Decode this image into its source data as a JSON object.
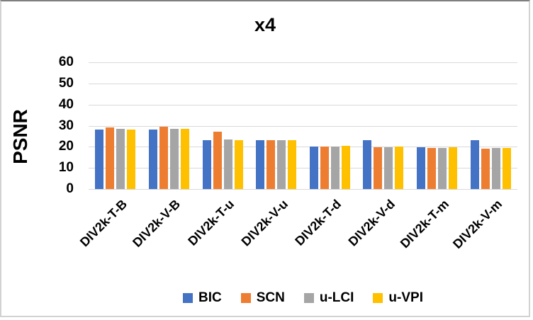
{
  "chart_data": {
    "type": "bar",
    "title": "x4",
    "ylabel": "PSNR",
    "xlabel": "",
    "ylim": [
      0,
      60
    ],
    "yticks": [
      0,
      10,
      20,
      30,
      40,
      50,
      60
    ],
    "grid": true,
    "legend_position": "bottom",
    "categories": [
      "DIV2k-T-B",
      "DIV2k-V-B",
      "DIV2k-T-u",
      "DIV2k-V-u",
      "DIV2k-T-d",
      "DIV2k-V-d",
      "DIV2k-T-m",
      "DIV2k-V-m"
    ],
    "series": [
      {
        "name": "BIC",
        "color": "#4472C4",
        "values": [
          28.0,
          28.0,
          23.3,
          23.1,
          20.1,
          23.2,
          19.8,
          23.1
        ]
      },
      {
        "name": "SCN",
        "color": "#ED7D31",
        "values": [
          29.0,
          29.5,
          27.3,
          23.1,
          20.2,
          19.8,
          19.5,
          19.1
        ]
      },
      {
        "name": "u-LCI",
        "color": "#A5A5A5",
        "values": [
          28.4,
          28.4,
          23.4,
          23.3,
          20.0,
          19.9,
          19.6,
          19.4
        ]
      },
      {
        "name": "u-VPI",
        "color": "#FFC000",
        "values": [
          28.3,
          28.5,
          23.3,
          23.2,
          20.3,
          20.2,
          19.9,
          19.3
        ]
      }
    ],
    "colors": {
      "gridline": "#D9D9D9",
      "axis_line": "#D9D9D9",
      "text": "#000000",
      "background": "#FFFFFF"
    }
  }
}
